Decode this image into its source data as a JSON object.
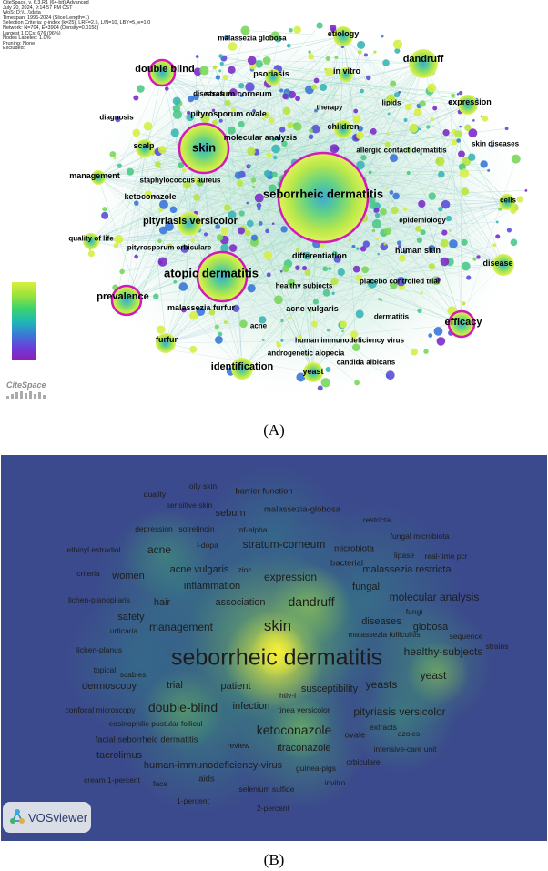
{
  "panel_a": {
    "caption": "(A)",
    "header_lines": [
      "CiteSpace, v. 6.3.R1 (64-bit) Advanced",
      "July 20, 2024, 9:14:57 PM CST",
      "WoS: D:\\\\...\\\\data",
      "Timespan: 1996-2024 (Slice Length=1)",
      "Selection Criteria: g-index (k=25), LRF=2.5, L/N=10, LBY=5, e=1.0",
      "Network: N=704, E=3904 (Density=0.0158)",
      "Largest 1 CCs: 676 (96%)",
      "Nodes Labeled: 1.0%",
      "Pruning: None",
      "Excluded:"
    ],
    "logo_text": "CiteSpace",
    "keywords": [
      {
        "text": "seborrheic dermatitis",
        "size": 1
      },
      {
        "text": "atopic dermatitis",
        "size": 1
      },
      {
        "text": "skin",
        "size": 1
      },
      {
        "text": "pityriasis versicolor",
        "size": 2
      },
      {
        "text": "double blind",
        "size": 2
      },
      {
        "text": "dandruff",
        "size": 2
      },
      {
        "text": "identification",
        "size": 2
      },
      {
        "text": "prevalence",
        "size": 2
      },
      {
        "text": "efficacy",
        "size": 2
      },
      {
        "text": "expression",
        "size": 3
      },
      {
        "text": "psoriasis",
        "size": 3
      },
      {
        "text": "in vitro",
        "size": 3
      },
      {
        "text": "etiology",
        "size": 3
      },
      {
        "text": "malassezia globosa",
        "size": 4
      },
      {
        "text": "stratum corneum",
        "size": 3
      },
      {
        "text": "pityrosporum ovale",
        "size": 3
      },
      {
        "text": "diseases",
        "size": 4
      },
      {
        "text": "therapy",
        "size": 4
      },
      {
        "text": "lipids",
        "size": 4
      },
      {
        "text": "children",
        "size": 3
      },
      {
        "text": "diagnosis",
        "size": 4
      },
      {
        "text": "molecular analysis",
        "size": 3
      },
      {
        "text": "allergic contact dermatitis",
        "size": 4
      },
      {
        "text": "skin diseases",
        "size": 4
      },
      {
        "text": "scalp",
        "size": 3
      },
      {
        "text": "management",
        "size": 3
      },
      {
        "text": "staphylococcus aureus",
        "size": 4
      },
      {
        "text": "ketoconazole",
        "size": 3
      },
      {
        "text": "cells",
        "size": 4
      },
      {
        "text": "epidemiology",
        "size": 4
      },
      {
        "text": "quality of life",
        "size": 4
      },
      {
        "text": "pityrosporum orbiculare",
        "size": 4
      },
      {
        "text": "differentiation",
        "size": 3
      },
      {
        "text": "human skin",
        "size": 3
      },
      {
        "text": "disease",
        "size": 3
      },
      {
        "text": "healthy subjects",
        "size": 4
      },
      {
        "text": "placebo controlled trial",
        "size": 4
      },
      {
        "text": "malassezia furfur",
        "size": 3
      },
      {
        "text": "acne vulgaris",
        "size": 3
      },
      {
        "text": "dermatitis",
        "size": 4
      },
      {
        "text": "acne",
        "size": 4
      },
      {
        "text": "human immunodeficiency virus",
        "size": 4
      },
      {
        "text": "furfur",
        "size": 3
      },
      {
        "text": "androgenetic alopecia",
        "size": 4
      },
      {
        "text": "candida albicans",
        "size": 4
      },
      {
        "text": "yeast",
        "size": 3
      }
    ],
    "colors": {
      "ring": "#d21bb5",
      "link": "#9fd0c0",
      "node_yellow": "#d6ee46",
      "node_green": "#5fd36a",
      "node_blue": "#3a78d8",
      "node_purple": "#7c2cc8"
    }
  },
  "panel_b": {
    "caption": "(B)",
    "logo_text": "VOSviewer",
    "terms": [
      {
        "text": "seborrheic dermatitis",
        "size": 1
      },
      {
        "text": "skin",
        "size": 2
      },
      {
        "text": "dandruff",
        "size": 3
      },
      {
        "text": "double-blind",
        "size": 3
      },
      {
        "text": "ketoconazole",
        "size": 3
      },
      {
        "text": "yeast",
        "size": 4
      },
      {
        "text": "pityriasis versicolor",
        "size": 4
      },
      {
        "text": "acne",
        "size": 4
      },
      {
        "text": "expression",
        "size": 4
      },
      {
        "text": "stratum-corneum",
        "size": 4
      },
      {
        "text": "management",
        "size": 4
      },
      {
        "text": "molecular analysis",
        "size": 4
      },
      {
        "text": "healthy-subjects",
        "size": 4
      },
      {
        "text": "yeasts",
        "size": 4
      },
      {
        "text": "sebum",
        "size": 5
      },
      {
        "text": "acne vulgaris",
        "size": 5
      },
      {
        "text": "inflammation",
        "size": 5
      },
      {
        "text": "women",
        "size": 5
      },
      {
        "text": "malassezia restricta",
        "size": 5
      },
      {
        "text": "itraconazole",
        "size": 5
      },
      {
        "text": "infection",
        "size": 5
      },
      {
        "text": "human-immunodeficiency-virus",
        "size": 5
      },
      {
        "text": "dermoscopy",
        "size": 5
      },
      {
        "text": "safety",
        "size": 5
      },
      {
        "text": "diseases",
        "size": 5
      },
      {
        "text": "globosa",
        "size": 5
      },
      {
        "text": "fungal",
        "size": 5
      },
      {
        "text": "association",
        "size": 5
      },
      {
        "text": "hair",
        "size": 5
      },
      {
        "text": "trial",
        "size": 5
      },
      {
        "text": "patient",
        "size": 5
      },
      {
        "text": "susceptibility",
        "size": 5
      },
      {
        "text": "tacrolimus",
        "size": 5
      },
      {
        "text": "facial seborrheic dermatitis",
        "size": 6
      },
      {
        "text": "microbiota",
        "size": 6
      },
      {
        "text": "bacterial",
        "size": 6
      },
      {
        "text": "malassezia-globosa",
        "size": 6
      },
      {
        "text": "barrier function",
        "size": 6
      },
      {
        "text": "oily skin",
        "size": 7
      },
      {
        "text": "quality",
        "size": 7
      },
      {
        "text": "sensitive skin",
        "size": 7
      },
      {
        "text": "restricta",
        "size": 7
      },
      {
        "text": "fungal microbiota",
        "size": 7
      },
      {
        "text": "depression",
        "size": 7
      },
      {
        "text": "isotretinoin",
        "size": 7
      },
      {
        "text": "tnf-alpha",
        "size": 7
      },
      {
        "text": "ethinyl estradiol",
        "size": 7
      },
      {
        "text": "l-dopa",
        "size": 7
      },
      {
        "text": "lipase",
        "size": 7
      },
      {
        "text": "real-time pcr",
        "size": 7
      },
      {
        "text": "criteria",
        "size": 7
      },
      {
        "text": "zinc",
        "size": 7
      },
      {
        "text": "lichen-planopilaris",
        "size": 7
      },
      {
        "text": "fungi",
        "size": 7
      },
      {
        "text": "urticaria",
        "size": 7
      },
      {
        "text": "malassezia folliculitis",
        "size": 7
      },
      {
        "text": "sequence",
        "size": 7
      },
      {
        "text": "lichen-planus",
        "size": 7
      },
      {
        "text": "strains",
        "size": 7
      },
      {
        "text": "topical",
        "size": 7
      },
      {
        "text": "scabies",
        "size": 7
      },
      {
        "text": "htlv-i",
        "size": 7
      },
      {
        "text": "confocal microscopy",
        "size": 7
      },
      {
        "text": "tinea versicolor",
        "size": 7
      },
      {
        "text": "eosinophilic pustular follicul",
        "size": 7
      },
      {
        "text": "extracts",
        "size": 7
      },
      {
        "text": "ovale",
        "size": 6
      },
      {
        "text": "azoles",
        "size": 7
      },
      {
        "text": "review",
        "size": 7
      },
      {
        "text": "intensive-care unit",
        "size": 7
      },
      {
        "text": "orbiculare",
        "size": 7
      },
      {
        "text": "cream 1-percent",
        "size": 7
      },
      {
        "text": "aids",
        "size": 6
      },
      {
        "text": "guinea-pigs",
        "size": 7
      },
      {
        "text": "face",
        "size": 7
      },
      {
        "text": "invitro",
        "size": 7
      },
      {
        "text": "selenium sulfide",
        "size": 7
      },
      {
        "text": "1-percent",
        "size": 7
      },
      {
        "text": "2-percent",
        "size": 7
      }
    ],
    "colors": {
      "background": "#3b4a8c",
      "low": "#2f8a8c",
      "mid": "#3cb46a",
      "high": "#b8d84a",
      "peak": "#f2ec3a"
    }
  }
}
